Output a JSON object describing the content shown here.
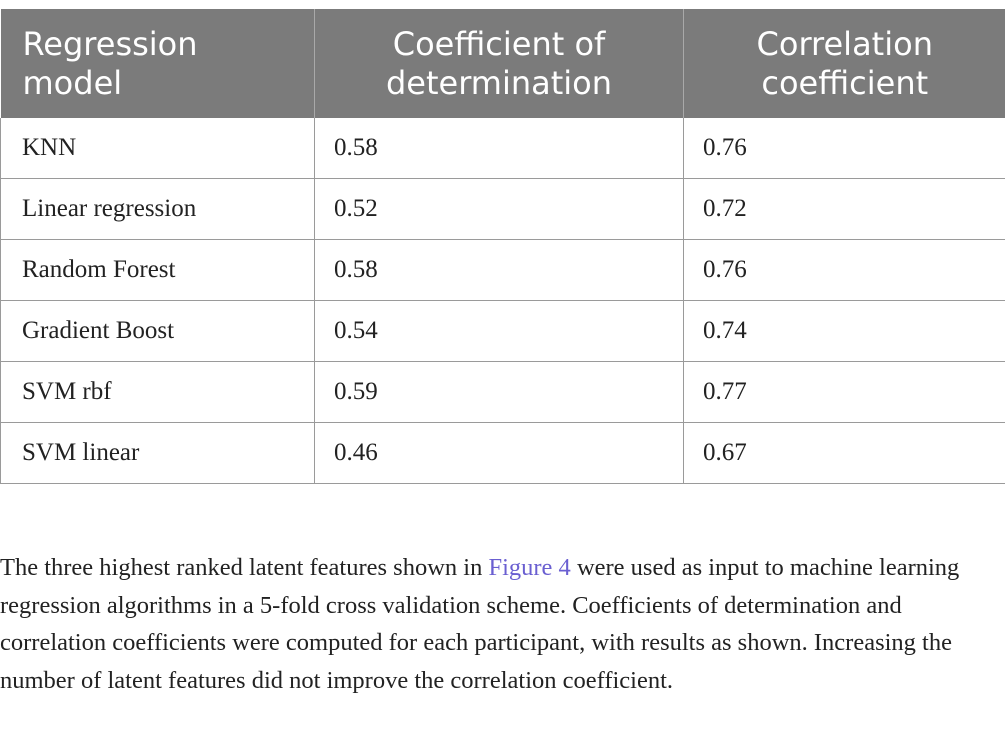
{
  "table": {
    "headers": [
      {
        "line1": "Regression",
        "line2": "model"
      },
      {
        "line1": "Coefficient of",
        "line2": "determination"
      },
      {
        "line1": "Correlation",
        "line2": "coefficient"
      }
    ],
    "rows": [
      {
        "model": "KNN",
        "r2": "0.58",
        "r": "0.76"
      },
      {
        "model": "Linear regression",
        "r2": "0.52",
        "r": "0.72"
      },
      {
        "model": "Random Forest",
        "r2": "0.58",
        "r": "0.76"
      },
      {
        "model": "Gradient Boost",
        "r2": "0.54",
        "r": "0.74"
      },
      {
        "model": "SVM rbf",
        "r2": "0.59",
        "r": "0.77"
      },
      {
        "model": "SVM linear",
        "r2": "0.46",
        "r": "0.67"
      }
    ]
  },
  "footnote": {
    "before_link": "The three highest ranked latent features shown in ",
    "link_text": "Figure 4",
    "after_link": " were used as input to machine learning regression algorithms in a 5-fold cross validation scheme. Coefficients of determination and correlation coefficients were computed for each participant, with results as shown. Increasing the number of latent features did not improve the correlation coefficient."
  }
}
